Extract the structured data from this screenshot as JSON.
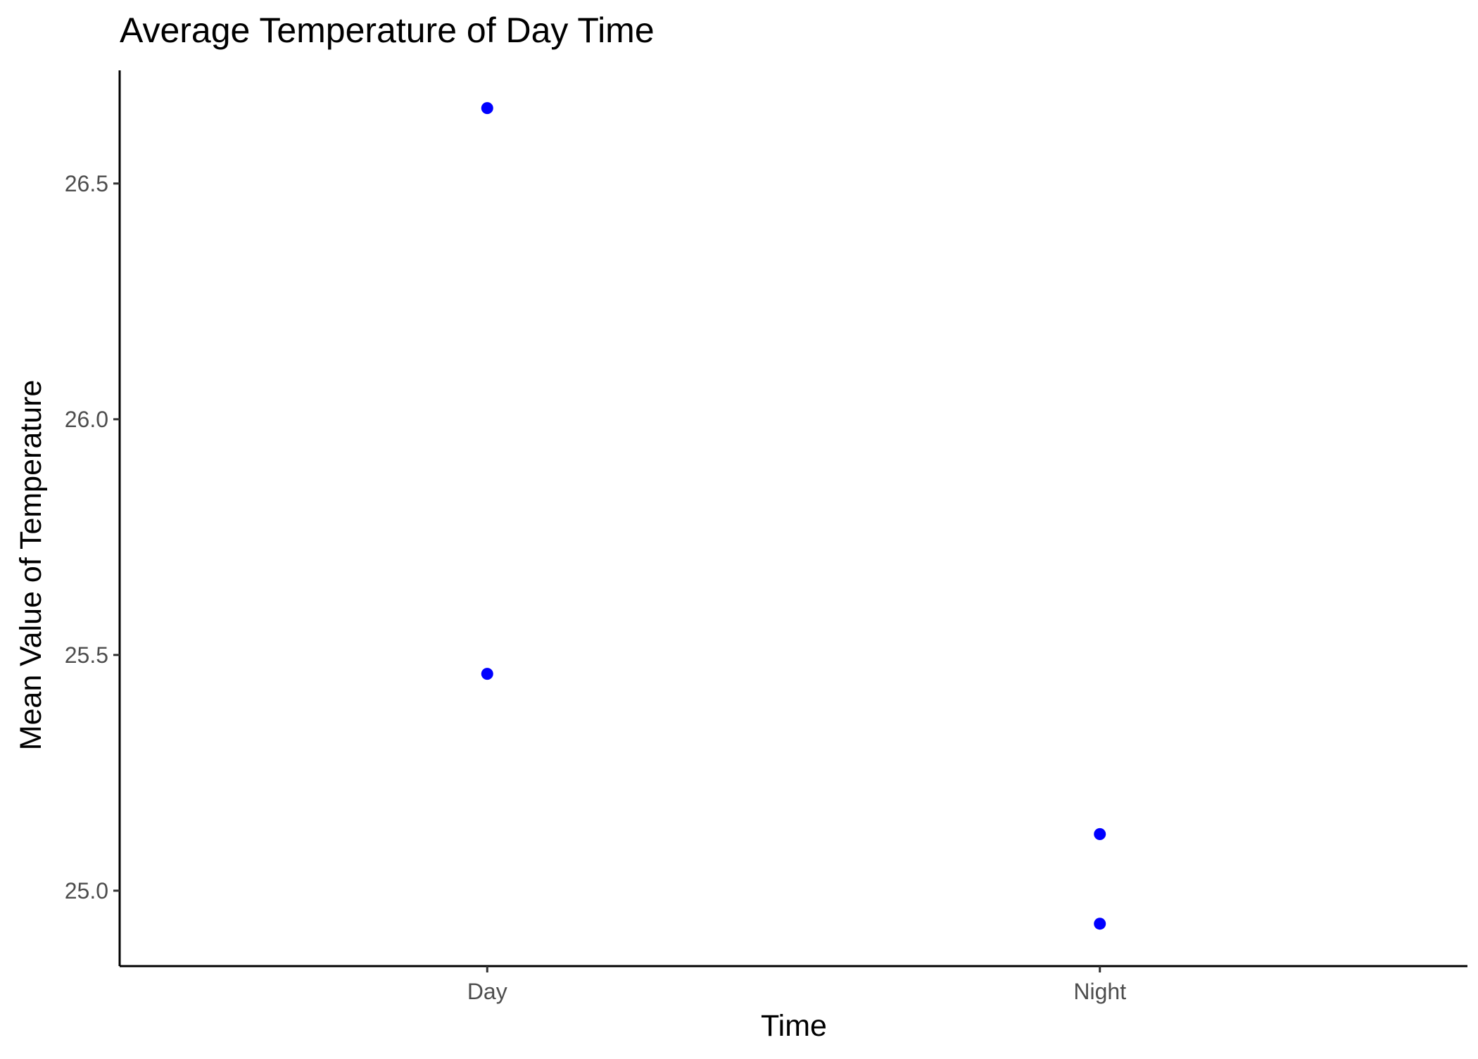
{
  "chart_data": {
    "type": "scatter",
    "title": "Average Temperature of Day Time",
    "xlabel": "Time",
    "ylabel": "Mean Value of Temperature",
    "categories": [
      "Day",
      "Night"
    ],
    "y_ticks": [
      "25.0",
      "25.5",
      "26.0",
      "26.5"
    ],
    "ylim": [
      24.84,
      26.74
    ],
    "series": [
      {
        "points": [
          {
            "x": "Day",
            "y": 26.66
          },
          {
            "x": "Day",
            "y": 25.46
          },
          {
            "x": "Night",
            "y": 25.12
          },
          {
            "x": "Night",
            "y": 24.93
          }
        ]
      }
    ],
    "point_color": "#0000ff",
    "grid": false,
    "legend": "none"
  }
}
